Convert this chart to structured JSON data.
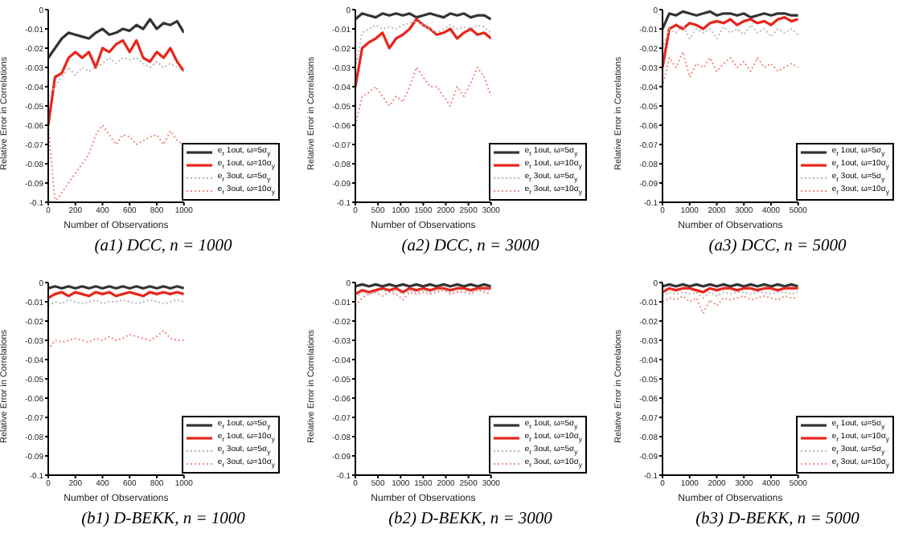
{
  "chart_data": [
    {
      "type": "line",
      "title": "(a1) DCC, n = 1000",
      "xlabel": "Number of Observations",
      "ylabel": "Relative Error in Correlations",
      "x": [
        0,
        50,
        100,
        150,
        200,
        250,
        300,
        350,
        400,
        450,
        500,
        550,
        600,
        650,
        700,
        750,
        800,
        850,
        900,
        950,
        1000
      ],
      "xlim": [
        0,
        1000
      ],
      "xticks": [
        0,
        200,
        400,
        600,
        800,
        1000
      ],
      "ylim": [
        -0.1,
        0
      ],
      "yticks": [
        0,
        -0.01,
        -0.02,
        -0.03,
        -0.04,
        -0.05,
        -0.06,
        -0.07,
        -0.08,
        -0.09,
        -0.1
      ],
      "legend": "bottom right",
      "series": [
        {
          "name": "e$_{r}$ 1out, ω=5σ$_{y}$",
          "color": "#333333",
          "line_style": "solid",
          "values": [
            -0.025,
            -0.02,
            -0.015,
            -0.012,
            -0.013,
            -0.014,
            -0.015,
            -0.012,
            -0.01,
            -0.013,
            -0.012,
            -0.01,
            -0.011,
            -0.008,
            -0.01,
            -0.005,
            -0.01,
            -0.007,
            -0.008,
            -0.006,
            -0.012
          ]
        },
        {
          "name": "e$_{r}$ 1out, ω=10σ$_{y}$",
          "color": "#e8251b",
          "line_style": "solid",
          "values": [
            -0.06,
            -0.035,
            -0.033,
            -0.025,
            -0.022,
            -0.025,
            -0.022,
            -0.03,
            -0.02,
            -0.022,
            -0.018,
            -0.016,
            -0.022,
            -0.016,
            -0.025,
            -0.027,
            -0.022,
            -0.025,
            -0.02,
            -0.027,
            -0.032
          ]
        },
        {
          "name": "e$_{r}$ 3out, ω=5σ$_{y}$",
          "color": "#b8b8b8",
          "line_style": "dotted",
          "values": [
            -0.045,
            -0.04,
            -0.035,
            -0.03,
            -0.034,
            -0.03,
            -0.032,
            -0.03,
            -0.028,
            -0.025,
            -0.028,
            -0.025,
            -0.026,
            -0.025,
            -0.028,
            -0.03,
            -0.027,
            -0.03,
            -0.028,
            -0.03,
            -0.032
          ]
        },
        {
          "name": "e$_{r}$ 3out, ω=10σ$_{y}$",
          "color": "#f08a80",
          "line_style": "dotted",
          "values": [
            -0.06,
            -0.1,
            -0.095,
            -0.09,
            -0.085,
            -0.08,
            -0.075,
            -0.065,
            -0.06,
            -0.065,
            -0.07,
            -0.065,
            -0.066,
            -0.07,
            -0.068,
            -0.066,
            -0.065,
            -0.07,
            -0.063,
            -0.068,
            -0.07
          ]
        }
      ]
    },
    {
      "type": "line",
      "title": "(a2) DCC, n = 3000",
      "xlabel": "Number of Observations",
      "ylabel": "Relative Error in Correlations",
      "x": [
        0,
        150,
        300,
        450,
        600,
        750,
        900,
        1050,
        1200,
        1350,
        1500,
        1650,
        1800,
        1950,
        2100,
        2250,
        2400,
        2550,
        2700,
        2850,
        3000
      ],
      "xlim": [
        0,
        3000
      ],
      "xticks": [
        0,
        500,
        1000,
        1500,
        2000,
        2500,
        3000
      ],
      "ylim": [
        -0.1,
        0
      ],
      "yticks": [
        0,
        -0.01,
        -0.02,
        -0.03,
        -0.04,
        -0.05,
        -0.06,
        -0.07,
        -0.08,
        -0.09,
        -0.1
      ],
      "legend": "bottom right",
      "series": [
        {
          "name": "e$_{r}$ 1out, ω=5σ$_{y}$",
          "color": "#333333",
          "line_style": "solid",
          "values": [
            -0.005,
            -0.002,
            -0.003,
            -0.004,
            -0.002,
            -0.003,
            -0.002,
            -0.003,
            -0.002,
            -0.004,
            -0.003,
            -0.002,
            -0.003,
            -0.004,
            -0.002,
            -0.003,
            -0.002,
            -0.004,
            -0.003,
            -0.003,
            -0.005
          ]
        },
        {
          "name": "e$_{r}$ 1out, ω=10σ$_{y}$",
          "color": "#e8251b",
          "line_style": "solid",
          "values": [
            -0.04,
            -0.02,
            -0.017,
            -0.015,
            -0.012,
            -0.02,
            -0.015,
            -0.013,
            -0.01,
            -0.005,
            -0.008,
            -0.01,
            -0.013,
            -0.012,
            -0.01,
            -0.015,
            -0.012,
            -0.01,
            -0.013,
            -0.012,
            -0.015
          ]
        },
        {
          "name": "e$_{r}$ 3out, ω=5σ$_{y}$",
          "color": "#b8b8b8",
          "line_style": "dotted",
          "values": [
            -0.03,
            -0.012,
            -0.01,
            -0.008,
            -0.01,
            -0.009,
            -0.01,
            -0.008,
            -0.007,
            -0.006,
            -0.008,
            -0.01,
            -0.012,
            -0.01,
            -0.008,
            -0.01,
            -0.009,
            -0.01,
            -0.008,
            -0.009,
            -0.012
          ]
        },
        {
          "name": "e$_{r}$ 3out, ω=10σ$_{y}$",
          "color": "#f08a80",
          "line_style": "dotted",
          "values": [
            -0.06,
            -0.045,
            -0.043,
            -0.04,
            -0.045,
            -0.05,
            -0.045,
            -0.048,
            -0.04,
            -0.03,
            -0.035,
            -0.04,
            -0.04,
            -0.045,
            -0.05,
            -0.04,
            -0.045,
            -0.038,
            -0.03,
            -0.035,
            -0.045
          ]
        }
      ]
    },
    {
      "type": "line",
      "title": "(a3) DCC, n = 5000",
      "xlabel": "Number of Observations",
      "ylabel": "Relative Error in Correlations",
      "x": [
        0,
        250,
        500,
        750,
        1000,
        1250,
        1500,
        1750,
        2000,
        2250,
        2500,
        2750,
        3000,
        3250,
        3500,
        3750,
        4000,
        4250,
        4500,
        4750,
        5000
      ],
      "xlim": [
        0,
        5000
      ],
      "xticks": [
        0,
        1000,
        2000,
        3000,
        4000,
        5000
      ],
      "ylim": [
        -0.1,
        0
      ],
      "yticks": [
        0,
        -0.01,
        -0.02,
        -0.03,
        -0.04,
        -0.05,
        -0.06,
        -0.07,
        -0.08,
        -0.09,
        -0.1
      ],
      "legend": "bottom right",
      "series": [
        {
          "name": "e$_{r}$ 1out, ω=5σ$_{y}$",
          "color": "#333333",
          "line_style": "solid",
          "values": [
            -0.01,
            -0.002,
            -0.003,
            -0.001,
            -0.002,
            -0.003,
            -0.002,
            -0.001,
            -0.003,
            -0.002,
            -0.002,
            -0.003,
            -0.002,
            -0.004,
            -0.003,
            -0.002,
            -0.003,
            -0.002,
            -0.002,
            -0.003,
            -0.003
          ]
        },
        {
          "name": "e$_{r}$ 1out, ω=10σ$_{y}$",
          "color": "#e8251b",
          "line_style": "solid",
          "values": [
            -0.03,
            -0.01,
            -0.008,
            -0.01,
            -0.007,
            -0.008,
            -0.01,
            -0.007,
            -0.006,
            -0.007,
            -0.005,
            -0.008,
            -0.006,
            -0.005,
            -0.007,
            -0.006,
            -0.008,
            -0.005,
            -0.004,
            -0.006,
            -0.005
          ]
        },
        {
          "name": "e$_{r}$ 3out, ω=5σ$_{y}$",
          "color": "#b8b8b8",
          "line_style": "dotted",
          "values": [
            -0.02,
            -0.01,
            -0.012,
            -0.008,
            -0.015,
            -0.01,
            -0.012,
            -0.01,
            -0.015,
            -0.009,
            -0.012,
            -0.01,
            -0.013,
            -0.008,
            -0.012,
            -0.01,
            -0.014,
            -0.01,
            -0.012,
            -0.01,
            -0.013
          ]
        },
        {
          "name": "e$_{r}$ 3out, ω=10σ$_{y}$",
          "color": "#f08a80",
          "line_style": "dotted",
          "values": [
            -0.04,
            -0.025,
            -0.03,
            -0.022,
            -0.035,
            -0.028,
            -0.03,
            -0.025,
            -0.032,
            -0.028,
            -0.025,
            -0.03,
            -0.027,
            -0.032,
            -0.025,
            -0.03,
            -0.028,
            -0.032,
            -0.03,
            -0.028,
            -0.03
          ]
        }
      ]
    },
    {
      "type": "line",
      "title": "(b1) D-BEKK, n = 1000",
      "xlabel": "Number of Observations",
      "ylabel": "Relative Error in Correlations",
      "x": [
        0,
        50,
        100,
        150,
        200,
        250,
        300,
        350,
        400,
        450,
        500,
        550,
        600,
        650,
        700,
        750,
        800,
        850,
        900,
        950,
        1000
      ],
      "xlim": [
        0,
        1000
      ],
      "xticks": [
        0,
        200,
        400,
        600,
        800,
        1000
      ],
      "ylim": [
        -0.1,
        0
      ],
      "yticks": [
        0,
        -0.01,
        -0.02,
        -0.03,
        -0.04,
        -0.05,
        -0.06,
        -0.07,
        -0.08,
        -0.09,
        -0.1
      ],
      "legend": "bottom right",
      "series": [
        {
          "name": "e$_{r}$ 1out, ω=5σ$_{y}$",
          "color": "#333333",
          "line_style": "solid",
          "values": [
            -0.003,
            -0.002,
            -0.003,
            -0.002,
            -0.003,
            -0.002,
            -0.003,
            -0.002,
            -0.003,
            -0.002,
            -0.003,
            -0.002,
            -0.003,
            -0.002,
            -0.003,
            -0.002,
            -0.003,
            -0.002,
            -0.003,
            -0.002,
            -0.003
          ]
        },
        {
          "name": "e$_{r}$ 1out, ω=10σ$_{y}$",
          "color": "#e8251b",
          "line_style": "solid",
          "values": [
            -0.008,
            -0.006,
            -0.005,
            -0.007,
            -0.005,
            -0.006,
            -0.007,
            -0.005,
            -0.006,
            -0.005,
            -0.007,
            -0.006,
            -0.005,
            -0.006,
            -0.007,
            -0.005,
            -0.006,
            -0.005,
            -0.006,
            -0.005,
            -0.006
          ]
        },
        {
          "name": "e$_{r}$ 3out, ω=5σ$_{y}$",
          "color": "#b8b8b8",
          "line_style": "dotted",
          "values": [
            -0.012,
            -0.01,
            -0.011,
            -0.009,
            -0.01,
            -0.011,
            -0.01,
            -0.009,
            -0.011,
            -0.01,
            -0.01,
            -0.009,
            -0.01,
            -0.011,
            -0.01,
            -0.009,
            -0.01,
            -0.011,
            -0.01,
            -0.009,
            -0.01
          ]
        },
        {
          "name": "e$_{r}$ 3out, ω=10σ$_{y}$",
          "color": "#f08a80",
          "line_style": "dotted",
          "values": [
            -0.035,
            -0.03,
            -0.031,
            -0.03,
            -0.029,
            -0.03,
            -0.031,
            -0.029,
            -0.03,
            -0.028,
            -0.03,
            -0.029,
            -0.027,
            -0.028,
            -0.029,
            -0.03,
            -0.028,
            -0.025,
            -0.029,
            -0.03,
            -0.03
          ]
        }
      ]
    },
    {
      "type": "line",
      "title": "(b2) D-BEKK, n = 3000",
      "xlabel": "Number of Observations",
      "ylabel": "Relative Error in Correlations",
      "x": [
        0,
        150,
        300,
        450,
        600,
        750,
        900,
        1050,
        1200,
        1350,
        1500,
        1650,
        1800,
        1950,
        2100,
        2250,
        2400,
        2550,
        2700,
        2850,
        3000
      ],
      "xlim": [
        0,
        3000
      ],
      "xticks": [
        0,
        500,
        1000,
        1500,
        2000,
        2500,
        3000
      ],
      "ylim": [
        -0.1,
        0
      ],
      "yticks": [
        0,
        -0.01,
        -0.02,
        -0.03,
        -0.04,
        -0.05,
        -0.06,
        -0.07,
        -0.08,
        -0.09,
        -0.1
      ],
      "legend": "bottom right",
      "series": [
        {
          "name": "e$_{r}$ 1out, ω=5σ$_{y}$",
          "color": "#333333",
          "line_style": "solid",
          "values": [
            -0.002,
            -0.001,
            -0.002,
            -0.001,
            -0.002,
            -0.001,
            -0.002,
            -0.001,
            -0.002,
            -0.001,
            -0.002,
            -0.001,
            -0.002,
            -0.001,
            -0.002,
            -0.001,
            -0.002,
            -0.001,
            -0.002,
            -0.001,
            -0.002
          ]
        },
        {
          "name": "e$_{r}$ 1out, ω=10σ$_{y}$",
          "color": "#e8251b",
          "line_style": "solid",
          "values": [
            -0.006,
            -0.004,
            -0.005,
            -0.004,
            -0.003,
            -0.004,
            -0.003,
            -0.005,
            -0.003,
            -0.004,
            -0.003,
            -0.004,
            -0.003,
            -0.003,
            -0.004,
            -0.003,
            -0.003,
            -0.004,
            -0.003,
            -0.003,
            -0.003
          ]
        },
        {
          "name": "e$_{r}$ 3out, ω=5σ$_{y}$",
          "color": "#b8b8b8",
          "line_style": "dotted",
          "values": [
            -0.008,
            -0.005,
            -0.006,
            -0.005,
            -0.004,
            -0.005,
            -0.004,
            -0.006,
            -0.004,
            -0.005,
            -0.004,
            -0.005,
            -0.004,
            -0.004,
            -0.005,
            -0.004,
            -0.004,
            -0.005,
            -0.004,
            -0.004,
            -0.004
          ]
        },
        {
          "name": "e$_{r}$ 3out, ω=10σ$_{y}$",
          "color": "#f08a80",
          "line_style": "dotted",
          "values": [
            -0.012,
            -0.008,
            -0.006,
            -0.005,
            -0.007,
            -0.005,
            -0.006,
            -0.009,
            -0.005,
            -0.006,
            -0.005,
            -0.006,
            -0.005,
            -0.004,
            -0.006,
            -0.005,
            -0.005,
            -0.006,
            -0.004,
            -0.005,
            -0.006
          ]
        }
      ]
    },
    {
      "type": "line",
      "title": "(b3) D-BEKK, n = 5000",
      "xlabel": "Number of Observations",
      "ylabel": "Relative Error in Correlations",
      "x": [
        0,
        250,
        500,
        750,
        1000,
        1250,
        1500,
        1750,
        2000,
        2250,
        2500,
        2750,
        3000,
        3250,
        3500,
        3750,
        4000,
        4250,
        4500,
        4750,
        5000
      ],
      "xlim": [
        0,
        5000
      ],
      "xticks": [
        0,
        1000,
        2000,
        3000,
        4000,
        5000
      ],
      "ylim": [
        -0.1,
        0
      ],
      "yticks": [
        0,
        -0.01,
        -0.02,
        -0.03,
        -0.04,
        -0.05,
        -0.06,
        -0.07,
        -0.08,
        -0.09,
        -0.1
      ],
      "legend": "bottom right",
      "series": [
        {
          "name": "e$_{r}$ 1out, ω=5σ$_{y}$",
          "color": "#333333",
          "line_style": "solid",
          "values": [
            -0.002,
            -0.001,
            -0.002,
            -0.001,
            -0.002,
            -0.001,
            -0.002,
            -0.001,
            -0.002,
            -0.001,
            -0.002,
            -0.001,
            -0.002,
            -0.001,
            -0.002,
            -0.001,
            -0.002,
            -0.001,
            -0.002,
            -0.001,
            -0.002
          ]
        },
        {
          "name": "e$_{r}$ 1out, ω=10σ$_{y}$",
          "color": "#e8251b",
          "line_style": "solid",
          "values": [
            -0.005,
            -0.003,
            -0.004,
            -0.003,
            -0.003,
            -0.004,
            -0.005,
            -0.003,
            -0.004,
            -0.003,
            -0.003,
            -0.004,
            -0.003,
            -0.003,
            -0.004,
            -0.003,
            -0.003,
            -0.004,
            -0.003,
            -0.003,
            -0.003
          ]
        },
        {
          "name": "e$_{r}$ 3out, ω=5σ$_{y}$",
          "color": "#b8b8b8",
          "line_style": "dotted",
          "values": [
            -0.007,
            -0.005,
            -0.006,
            -0.005,
            -0.006,
            -0.005,
            -0.008,
            -0.005,
            -0.007,
            -0.005,
            -0.006,
            -0.005,
            -0.005,
            -0.006,
            -0.005,
            -0.005,
            -0.006,
            -0.005,
            -0.005,
            -0.006,
            -0.005
          ]
        },
        {
          "name": "e$_{r}$ 3out, ω=10σ$_{y}$",
          "color": "#f08a80",
          "line_style": "dotted",
          "values": [
            -0.01,
            -0.008,
            -0.009,
            -0.007,
            -0.01,
            -0.008,
            -0.016,
            -0.009,
            -0.012,
            -0.008,
            -0.009,
            -0.008,
            -0.007,
            -0.009,
            -0.008,
            -0.007,
            -0.008,
            -0.009,
            -0.007,
            -0.008,
            -0.008
          ]
        }
      ]
    }
  ]
}
